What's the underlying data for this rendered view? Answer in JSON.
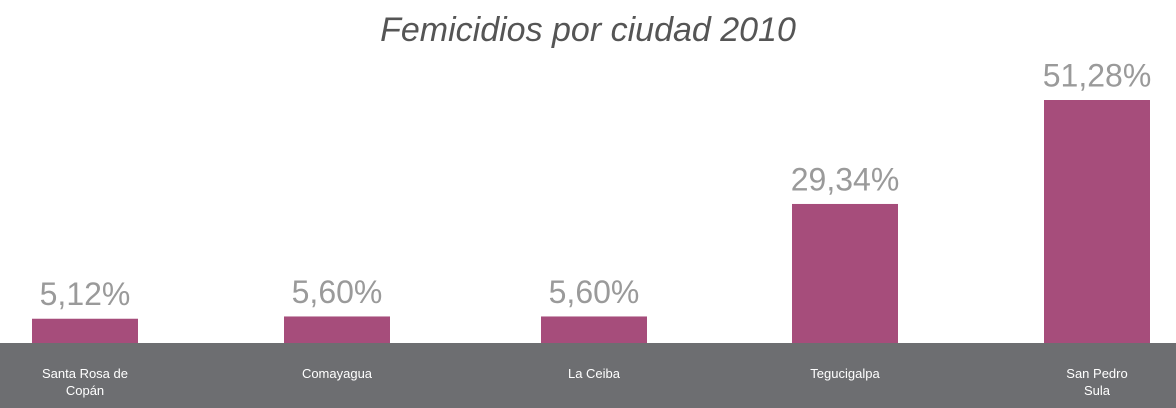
{
  "chart_data": {
    "type": "bar",
    "title": "Femicidios por ciudad 2010",
    "categories": [
      "Santa Rosa de Copán",
      "Comayagua",
      "La Ceiba",
      "Tegucigalpa",
      "San Pedro Sula"
    ],
    "values": [
      5.12,
      5.6,
      5.6,
      29.34,
      51.28
    ],
    "value_labels": [
      "5,12%",
      "5,60%",
      "5,60%",
      "29,34%",
      "51,28%"
    ],
    "color": "#a64d7b"
  }
}
